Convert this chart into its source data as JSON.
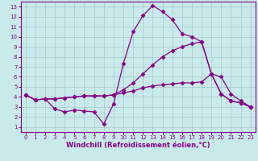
{
  "xlabel": "Windchill (Refroidissement éolien,°C)",
  "xlim": [
    -0.5,
    23.5
  ],
  "ylim": [
    0.5,
    13.5
  ],
  "xticks": [
    0,
    1,
    2,
    3,
    4,
    5,
    6,
    7,
    8,
    9,
    10,
    11,
    12,
    13,
    14,
    15,
    16,
    17,
    18,
    19,
    20,
    21,
    22,
    23
  ],
  "yticks": [
    1,
    2,
    3,
    4,
    5,
    6,
    7,
    8,
    9,
    10,
    11,
    12,
    13
  ],
  "background_color": "#c8eaea",
  "grid_color": "#9fbfbf",
  "line_color": "#880088",
  "line1_x": [
    0,
    1,
    2,
    3,
    4,
    5,
    6,
    7,
    8,
    9,
    10,
    11,
    12,
    13,
    14,
    15,
    16,
    17,
    18,
    19,
    20,
    21,
    22,
    23
  ],
  "line1_y": [
    4.2,
    3.7,
    3.8,
    2.8,
    2.5,
    2.7,
    2.6,
    2.5,
    1.3,
    3.3,
    7.3,
    10.5,
    12.1,
    13.1,
    12.5,
    11.7,
    10.3,
    10.0,
    9.5,
    6.3,
    4.3,
    3.6,
    3.4,
    3.0
  ],
  "line2_x": [
    0,
    1,
    2,
    3,
    4,
    5,
    6,
    7,
    8,
    9,
    10,
    11,
    12,
    13,
    14,
    15,
    16,
    17,
    18,
    19,
    20,
    21,
    22,
    23
  ],
  "line2_y": [
    4.2,
    3.7,
    3.8,
    3.8,
    3.9,
    4.0,
    4.1,
    4.1,
    4.1,
    4.2,
    4.4,
    4.6,
    4.9,
    5.1,
    5.2,
    5.3,
    5.4,
    5.4,
    5.5,
    6.3,
    6.0,
    4.3,
    3.6,
    3.0
  ],
  "line3_x": [
    0,
    1,
    2,
    3,
    4,
    5,
    6,
    7,
    8,
    9,
    10,
    11,
    12,
    13,
    14,
    15,
    16,
    17,
    18,
    19,
    20,
    21,
    22,
    23
  ],
  "line3_y": [
    4.2,
    3.7,
    3.8,
    3.8,
    3.9,
    4.0,
    4.1,
    4.1,
    4.1,
    4.2,
    4.7,
    5.4,
    6.3,
    7.2,
    8.0,
    8.6,
    9.0,
    9.3,
    9.5,
    6.3,
    4.3,
    3.6,
    3.4,
    3.0
  ],
  "marker": "D",
  "markersize": 2.5,
  "linewidth": 0.9,
  "tick_fontsize": 5,
  "xlabel_fontsize": 6
}
